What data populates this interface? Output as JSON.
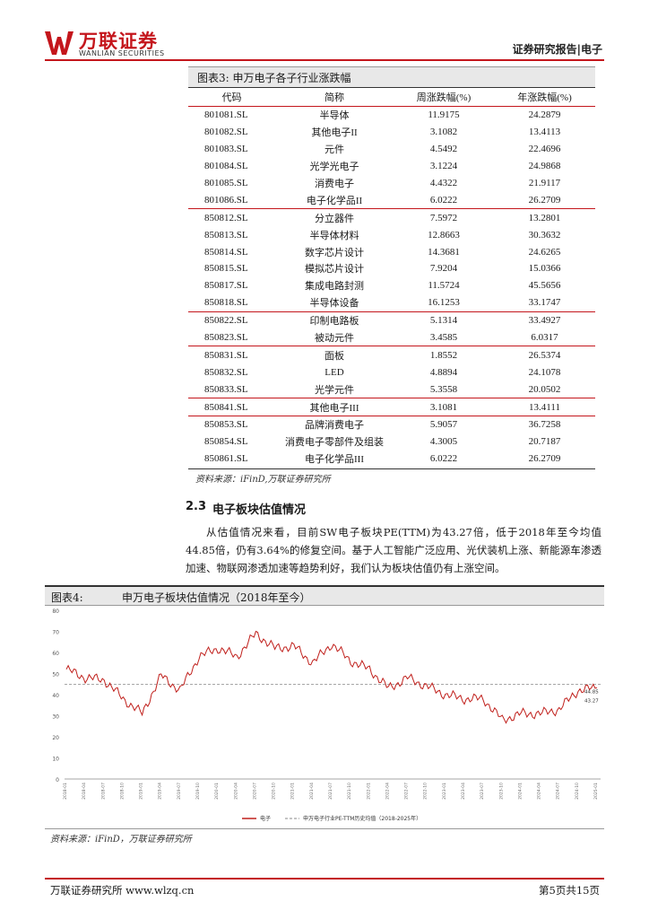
{
  "header": {
    "logo_cn": "万联证券",
    "logo_en": "WANLIAN SECURITIES",
    "tag": "证券研究报告|电子"
  },
  "table": {
    "title": "图表3:    申万电子各子行业涨跌幅",
    "headers": [
      "代码",
      "简称",
      "周涨跌幅(%)",
      "年涨跌幅(%)"
    ],
    "rows": [
      [
        "801081.SL",
        "半导体",
        "11.9175",
        "24.2879"
      ],
      [
        "801082.SL",
        "其他电子II",
        "3.1082",
        "13.4113"
      ],
      [
        "801083.SL",
        "元件",
        "4.5492",
        "22.4696"
      ],
      [
        "801084.SL",
        "光学光电子",
        "3.1224",
        "24.9868"
      ],
      [
        "801085.SL",
        "消费电子",
        "4.4322",
        "21.9117"
      ],
      [
        "801086.SL",
        "电子化学品II",
        "6.0222",
        "26.2709"
      ],
      [
        "850812.SL",
        "分立器件",
        "7.5972",
        "13.2801"
      ],
      [
        "850813.SL",
        "半导体材料",
        "12.8663",
        "30.3632"
      ],
      [
        "850814.SL",
        "数字芯片设计",
        "14.3681",
        "24.6265"
      ],
      [
        "850815.SL",
        "模拟芯片设计",
        "7.9204",
        "15.0366"
      ],
      [
        "850817.SL",
        "集成电路封测",
        "11.5724",
        "45.5656"
      ],
      [
        "850818.SL",
        "半导体设备",
        "16.1253",
        "33.1747"
      ],
      [
        "850822.SL",
        "印制电路板",
        "5.1314",
        "33.4927"
      ],
      [
        "850823.SL",
        "被动元件",
        "3.4585",
        "6.0317"
      ],
      [
        "850831.SL",
        "面板",
        "1.8552",
        "26.5374"
      ],
      [
        "850832.SL",
        "LED",
        "4.8894",
        "24.1078"
      ],
      [
        "850833.SL",
        "光学元件",
        "5.3558",
        "20.0502"
      ],
      [
        "850841.SL",
        "其他电子III",
        "3.1081",
        "13.4111"
      ],
      [
        "850853.SL",
        "品牌消费电子",
        "5.9057",
        "36.7258"
      ],
      [
        "850854.SL",
        "消费电子零部件及组装",
        "4.3005",
        "20.7187"
      ],
      [
        "850861.SL",
        "电子化学品III",
        "6.0222",
        "26.2709"
      ]
    ],
    "source": "资料来源：iFinD,万联证券研究所"
  },
  "section": {
    "number": "2.3",
    "title": "电子板块估值情况",
    "paragraph": "从估值情况来看，目前SW电子板块PE(TTM)为43.27倍，低于2018年至今均值44.85倍，仍有3.64%的修复空间。基于人工智能广泛应用、光伏装机上涨、新能源车渗透加速、物联网渗透加速等趋势利好，我们认为板块估值仍有上涨空间。"
  },
  "figure": {
    "label": "图表4:",
    "title": "申万电子板块估值情况（2018年至今）",
    "source": "资料来源：iFinD，万联证券研究所"
  },
  "chart_data": {
    "type": "line",
    "ylim": [
      0,
      80
    ],
    "yticks": [
      "80",
      "70",
      "60",
      "50",
      "40",
      "30",
      "20",
      "10",
      "0"
    ],
    "series": [
      {
        "name": "电子",
        "color": "#c0201c",
        "x": [
          "2018-01",
          "2018-04",
          "2018-07",
          "2018-10",
          "2019-01",
          "2019-04",
          "2019-07",
          "2019-10",
          "2020-01",
          "2020-04",
          "2020-07",
          "2020-10",
          "2021-01",
          "2021-04",
          "2021-07",
          "2021-10",
          "2022-01",
          "2022-04",
          "2022-07",
          "2022-10",
          "2023-01",
          "2023-04",
          "2023-07",
          "2023-10",
          "2024-01",
          "2024-04",
          "2024-07",
          "2024-10",
          "2025-01"
        ],
        "values": [
          52,
          48,
          47,
          38,
          31,
          49,
          42,
          58,
          62,
          58,
          69,
          62,
          63,
          55,
          64,
          56,
          52,
          43,
          48,
          44,
          40,
          38,
          38,
          28,
          31,
          31,
          33,
          42,
          43.27
        ]
      },
      {
        "name": "申万电子行业PE-TTM历史均值(2018-2025年)",
        "color": "#888888",
        "constant": 44.85
      }
    ],
    "annotations": [
      "44.85",
      "43.27"
    ],
    "legend": [
      "电子",
      "申万电子行业PE-TTM历史均值（2018-2025年）"
    ]
  },
  "footer": {
    "left": "万联证券研究所  www.wlzq.cn",
    "right": "第5页共15页"
  }
}
